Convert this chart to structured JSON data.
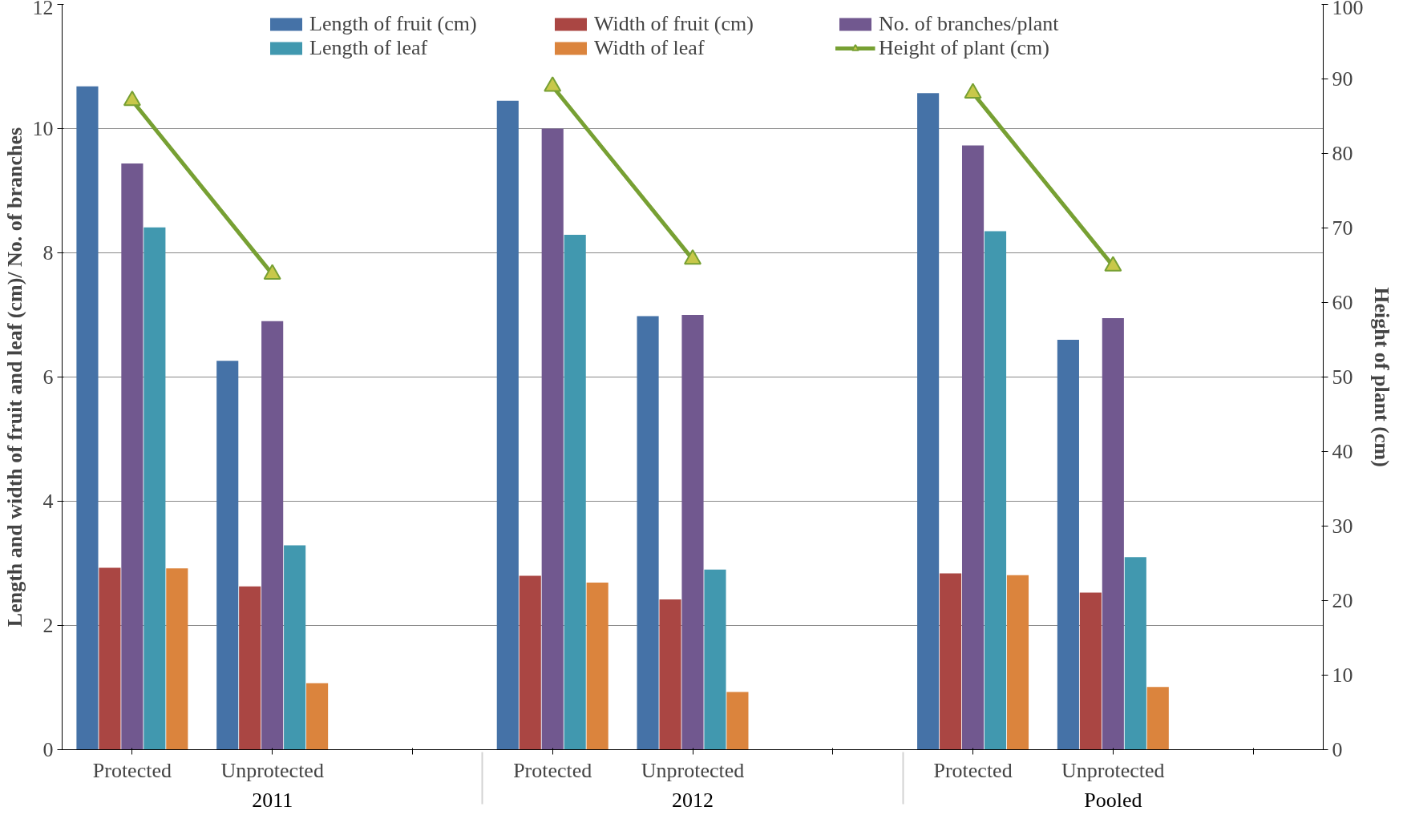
{
  "chart_data": {
    "type": "bar",
    "ylabel": "Length and width of fruit and leaf (cm)/ No. of branches",
    "y2label": "Height of plant (cm)",
    "categories": [
      "Protected",
      "Unprotected",
      null,
      "Protected",
      "Unprotected",
      null,
      "Protected",
      "Unprotected",
      null
    ],
    "annotations": [
      "2011",
      "2012",
      "Pooled"
    ],
    "series": [
      {
        "name": "Length of fruit (cm)",
        "color": "#4572a7",
        "values": [
          10.68,
          6.26,
          null,
          10.45,
          6.98,
          null,
          10.57,
          6.6,
          null
        ]
      },
      {
        "name": "Width of fruit (cm)",
        "color": "#aa4643",
        "values": [
          2.93,
          2.63,
          null,
          2.8,
          2.42,
          null,
          2.84,
          2.53,
          null
        ]
      },
      {
        "name": "No. of branches/plant",
        "color": "#71588f",
        "values": [
          9.44,
          6.9,
          null,
          10.0,
          7.0,
          null,
          9.73,
          6.95,
          null
        ]
      },
      {
        "name": "Length of leaf",
        "color": "#4198af",
        "values": [
          8.41,
          3.29,
          null,
          8.29,
          2.9,
          null,
          8.35,
          3.1,
          null
        ]
      },
      {
        "name": "Width of leaf",
        "color": "#db843d",
        "values": [
          2.92,
          1.07,
          null,
          2.69,
          0.93,
          null,
          2.81,
          1.01,
          null
        ]
      },
      {
        "name": "Height of plant (cm)",
        "color": "#77a033",
        "type": "line",
        "axis": "y2",
        "marker": "triangle",
        "values": [
          87.1,
          63.8,
          null,
          89.0,
          65.8,
          null,
          88.1,
          64.9,
          null
        ]
      }
    ],
    "ylim": [
      0,
      12
    ],
    "yticks": [
      0,
      2,
      4,
      6,
      8,
      10,
      12
    ],
    "y2lim": [
      0,
      100
    ],
    "y2ticks": [
      0,
      10,
      20,
      30,
      40,
      50,
      60,
      70,
      80,
      90,
      100
    ],
    "grid": "y",
    "legend": "top"
  }
}
